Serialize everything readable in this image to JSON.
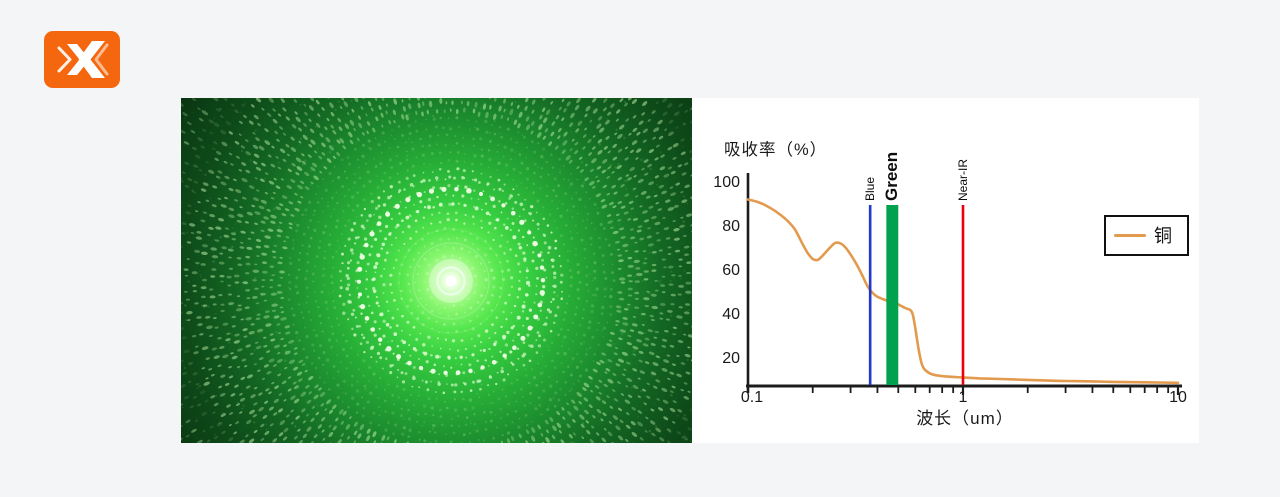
{
  "page": {
    "background_color": "#f4f5f7"
  },
  "brand": {
    "logo_icon": "double-chevron-x-logo",
    "logo_color": "#f4670e",
    "logo_glyph_color": "#ffffff"
  },
  "laser_photo": {
    "kind": "green-laser-diffraction-photo",
    "description": "Photo of a green laser beam dot-matrix diffraction pattern: bright white core with concentric rings of green dots fading outward"
  },
  "chart_data": {
    "type": "line",
    "title": "",
    "ylabel": "吸收率（%）",
    "xlabel": "波长（um）",
    "x_scale": "log",
    "xlim": [
      0.1,
      10
    ],
    "ylim": [
      8,
      104
    ],
    "x_tick_labels": [
      "0.1",
      "1",
      "10"
    ],
    "x_tick_values": [
      0.1,
      1,
      10
    ],
    "y_tick_values": [
      100,
      80,
      60,
      40,
      20
    ],
    "grid": "off",
    "axis_color": "#1c1c1c",
    "legend": {
      "position": "right",
      "border_color": "#111111",
      "entries": [
        {
          "label": "铜",
          "color": "#e29a4e"
        }
      ]
    },
    "series": [
      {
        "name": "铜",
        "color": "#e29a4e",
        "points": [
          [
            0.1,
            92.5
          ],
          [
            0.11,
            91.5
          ],
          [
            0.12,
            90.0
          ],
          [
            0.135,
            87.0
          ],
          [
            0.15,
            83.5
          ],
          [
            0.165,
            79.0
          ],
          [
            0.18,
            72.0
          ],
          [
            0.19,
            68.0
          ],
          [
            0.2,
            65.5
          ],
          [
            0.21,
            65.0
          ],
          [
            0.22,
            66.5
          ],
          [
            0.24,
            70.5
          ],
          [
            0.255,
            72.8
          ],
          [
            0.27,
            72.5
          ],
          [
            0.285,
            70.5
          ],
          [
            0.3,
            67.5
          ],
          [
            0.32,
            63.0
          ],
          [
            0.34,
            58.0
          ],
          [
            0.36,
            53.0
          ],
          [
            0.38,
            50.0
          ],
          [
            0.4,
            48.3
          ],
          [
            0.43,
            47.0
          ],
          [
            0.46,
            46.0
          ],
          [
            0.5,
            44.8
          ],
          [
            0.53,
            43.5
          ],
          [
            0.55,
            42.8
          ],
          [
            0.57,
            42.2
          ],
          [
            0.585,
            40.0
          ],
          [
            0.6,
            34.0
          ],
          [
            0.62,
            25.0
          ],
          [
            0.64,
            18.5
          ],
          [
            0.66,
            15.5
          ],
          [
            0.7,
            13.5
          ],
          [
            0.75,
            12.6
          ],
          [
            0.85,
            12.0
          ],
          [
            1.0,
            11.6
          ],
          [
            1.2,
            11.2
          ],
          [
            1.5,
            10.9
          ],
          [
            2.0,
            10.5
          ],
          [
            2.5,
            10.2
          ],
          [
            3.0,
            10.0
          ],
          [
            4.0,
            9.8
          ],
          [
            5.0,
            9.6
          ],
          [
            7.0,
            9.4
          ],
          [
            10.0,
            9.2
          ]
        ]
      }
    ],
    "markers": [
      {
        "label": "Blue",
        "type": "line",
        "wavelength": 0.37,
        "color": "#2038cc"
      },
      {
        "label": "Green",
        "type": "band",
        "wavelength_range": [
          0.44,
          0.5
        ],
        "color": "#00a14f"
      },
      {
        "label": "Near-IR",
        "type": "line",
        "wavelength": 1.0,
        "color": "#e8000e"
      }
    ]
  }
}
